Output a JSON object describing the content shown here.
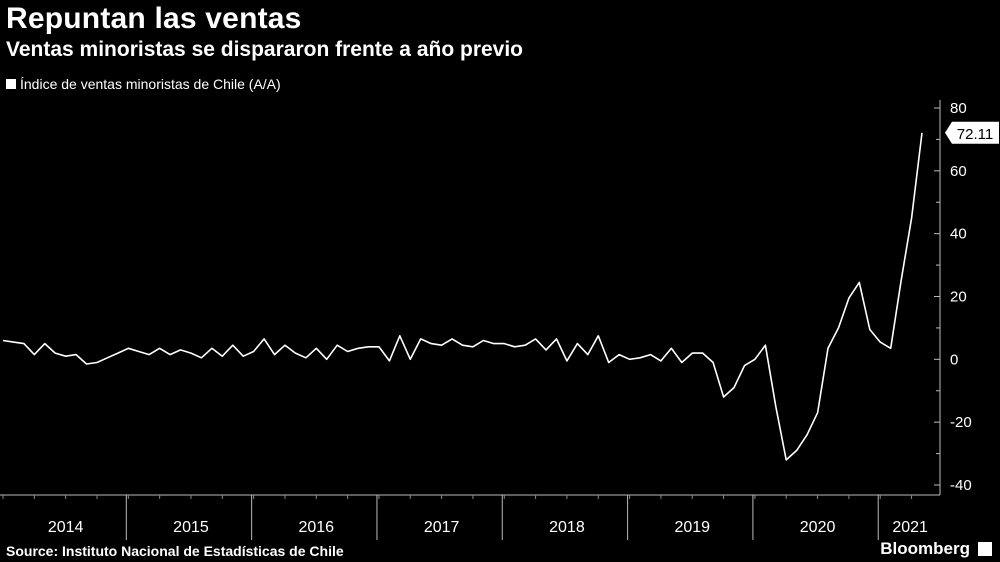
{
  "title": "Repuntan las ventas",
  "subtitle": "Ventas minoristas se dispararon frente a año previo",
  "legend": "Índice de ventas minoristas de Chile (A/A)",
  "source": "Source: Instituto Nacional de Estadísticas de Chile",
  "brand": "Bloomberg",
  "colors": {
    "background": "#000000",
    "line": "#ffffff"
  },
  "chart_data": {
    "type": "line",
    "title": "Repuntan las ventas",
    "subtitle": "Ventas minoristas se dispararon frente a año previo",
    "ylim": [
      -40,
      80
    ],
    "yticks": [
      80,
      60,
      40,
      20,
      0,
      -20,
      -40
    ],
    "x_year_labels": [
      "2014",
      "2015",
      "2016",
      "2017",
      "2018",
      "2019",
      "2020",
      "2021"
    ],
    "x_start": "2014-01",
    "x_end": "2021-07",
    "last_value_label": "72.11",
    "series": [
      {
        "name": "Índice de ventas minoristas de Chile (A/A)",
        "values": [
          6,
          5.5,
          5,
          1.5,
          5,
          2,
          1,
          1.5,
          -1.5,
          -1,
          0.5,
          2,
          3.5,
          2.5,
          1.5,
          3.5,
          1.5,
          3,
          2,
          0.5,
          3.5,
          1,
          4.5,
          1,
          2.5,
          6.5,
          1.5,
          4.5,
          2,
          0.5,
          3.5,
          0,
          4.5,
          2.5,
          3.5,
          4,
          4,
          -0.5,
          7.5,
          0,
          6.5,
          5,
          4.5,
          6.5,
          4.5,
          4,
          6,
          5,
          5,
          4,
          4.5,
          6.5,
          3,
          6.5,
          -0.5,
          5,
          1.5,
          7.5,
          -1,
          1.5,
          0,
          0.5,
          1.5,
          -0.5,
          3.5,
          -1,
          2,
          2,
          -1,
          -12,
          -9,
          -2,
          0,
          4.5,
          -15,
          -32,
          -29,
          -24,
          -17,
          3.5,
          10,
          19.5,
          24.5,
          9.5,
          5.5,
          3.5,
          25,
          45,
          72.11
        ]
      }
    ]
  }
}
